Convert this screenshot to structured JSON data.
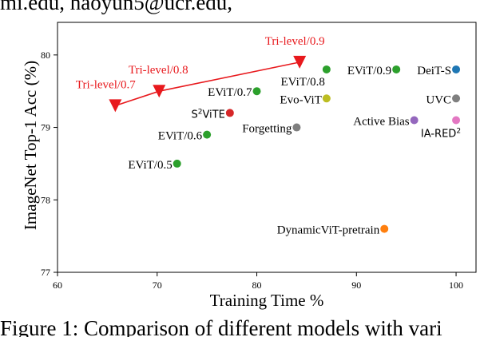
{
  "header_fragment": "mi.edu,   haoyun5@ucr.edu,",
  "caption_fragment": "Figure 1: Comparison of different models with vari",
  "chart_data": {
    "type": "scatter",
    "title": "",
    "xlabel": "Training Time %",
    "ylabel": "ImageNet Top-1 Acc (%)",
    "xlim": [
      60,
      102
    ],
    "ylim": [
      77,
      80.45
    ],
    "xticks": [
      60,
      70,
      80,
      90,
      100
    ],
    "yticks": [
      77,
      78,
      79,
      80
    ],
    "grid": false,
    "legend": "none",
    "points": [
      {
        "label": "EViT/0.5",
        "x": 72.0,
        "y": 78.5,
        "color": "#2ca02c",
        "anchor": "end",
        "dx": -6,
        "dy": 6
      },
      {
        "label": "EViT/0.6",
        "x": 75.0,
        "y": 78.9,
        "color": "#2ca02c",
        "anchor": "end",
        "dx": -6,
        "dy": 6
      },
      {
        "label": "EViT/0.7",
        "x": 80.0,
        "y": 79.5,
        "color": "#2ca02c",
        "anchor": "end",
        "dx": -6,
        "dy": 6
      },
      {
        "label": "EViT/0.8",
        "x": 87.0,
        "y": 79.8,
        "color": "#2ca02c",
        "anchor": "end",
        "dx": -2,
        "dy": 20
      },
      {
        "label": "EViT/0.9",
        "x": 94.0,
        "y": 79.8,
        "color": "#2ca02c",
        "anchor": "end",
        "dx": -6,
        "dy": 6
      },
      {
        "label": "DeiT-S",
        "x": 100.0,
        "y": 79.8,
        "color": "#1f77b4",
        "anchor": "end",
        "dx": -6,
        "dy": 6
      },
      {
        "label": "UVC",
        "x": 100.0,
        "y": 79.4,
        "color": "#7f7f7f",
        "anchor": "end",
        "dx": -6,
        "dy": 6
      },
      {
        "label": "IA-RED",
        "x": 100.0,
        "y": 79.1,
        "color": "#e377c2",
        "anchor": "end",
        "dx": 6,
        "dy": 21,
        "sup": "2",
        "sans": true
      },
      {
        "label": "Active Bias",
        "x": 95.8,
        "y": 79.1,
        "color": "#9467bd",
        "anchor": "end",
        "dx": -6,
        "dy": 6
      },
      {
        "label": "Evo-ViT",
        "x": 87.0,
        "y": 79.4,
        "color": "#bcbd22",
        "anchor": "end",
        "dx": -6,
        "dy": 6
      },
      {
        "label": "Forgetting",
        "x": 84.0,
        "y": 79.0,
        "color": "#7f7f7f",
        "anchor": "end",
        "dx": -6,
        "dy": 6
      },
      {
        "label": "ViTE",
        "x": 77.3,
        "y": 79.2,
        "color": "#d62728",
        "anchor": "end",
        "dx": -6,
        "dy": 6,
        "pre": "S",
        "pre_sup": "2",
        "sans": true
      },
      {
        "label": "DynamicViT-pretrain",
        "x": 92.8,
        "y": 77.6,
        "color": "#ff7f0e",
        "anchor": "end",
        "dx": -6,
        "dy": 6
      }
    ],
    "series": [
      {
        "label_color": "#e8191d",
        "color": "#e8191d",
        "marker": "triangle-down",
        "points": [
          {
            "label": "Tri-level/0.7",
            "x": 65.8,
            "y": 79.3,
            "dx": -12,
            "dy": -22
          },
          {
            "label": "Tri-level/0.8",
            "x": 70.2,
            "y": 79.5,
            "dx": -1,
            "dy": -22
          },
          {
            "label": "Tri-level/0.9",
            "x": 84.3,
            "y": 79.9,
            "dx": -6,
            "dy": -22
          }
        ]
      }
    ]
  }
}
